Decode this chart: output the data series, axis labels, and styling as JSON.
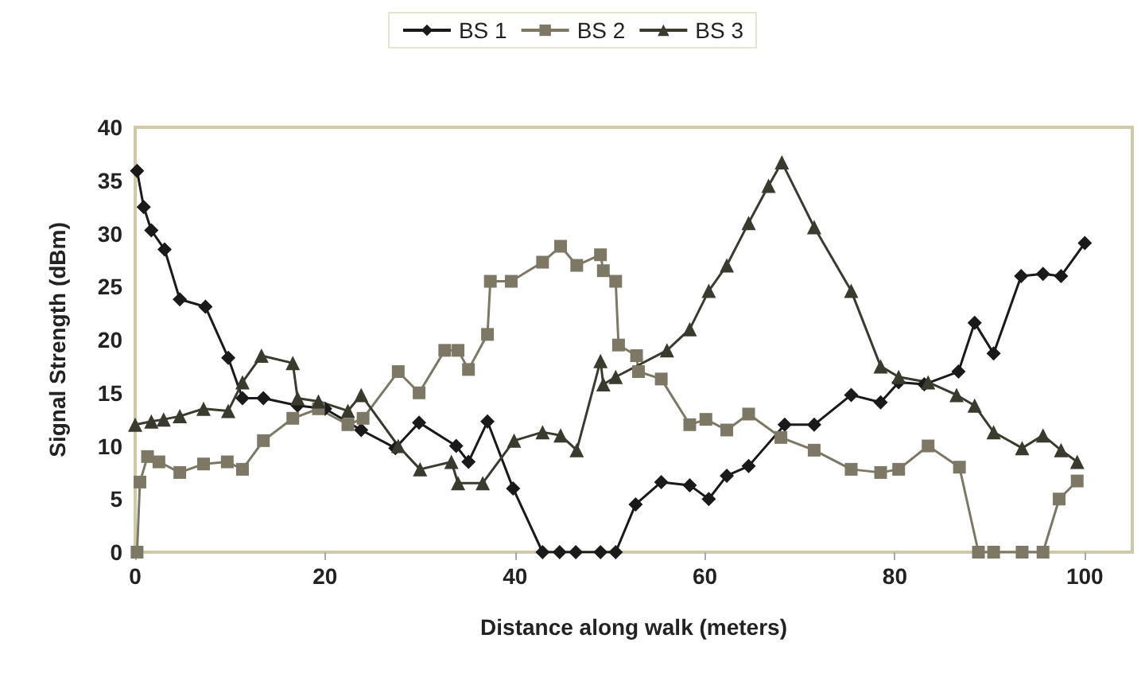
{
  "chart_data": {
    "type": "line",
    "xlabel": "Distance along walk (meters)",
    "ylabel": "Signal Strength (dBm)",
    "xlim": [
      0,
      105
    ],
    "xticks": [
      0,
      20,
      40,
      60,
      80,
      100
    ],
    "ylim": [
      0,
      40
    ],
    "yticks": [
      0,
      5,
      10,
      15,
      20,
      25,
      30,
      35,
      40
    ],
    "grid": false,
    "legend": "top",
    "line_style": "solid",
    "series": [
      {
        "name": "BS 1",
        "color": "#1a1a1a",
        "marker": "diamond",
        "x": [
          0.2,
          0.9,
          1.7,
          3.1,
          4.7,
          7.4,
          9.8,
          11.3,
          13.5,
          17.1,
          20,
          23.8,
          27.4,
          29.9,
          33.8,
          35.1,
          37.1,
          39.8,
          42.9,
          44.7,
          46.4,
          49,
          50.6,
          52.7,
          55.4,
          58.4,
          60.4,
          62.3,
          64.6,
          68.4,
          71.5,
          75.4,
          78.5,
          80.4,
          83.1,
          86.7,
          88.4,
          90.4,
          93.3,
          95.6,
          97.5,
          100
        ],
        "values": [
          35.9,
          32.5,
          30.3,
          28.5,
          23.8,
          23.1,
          18.3,
          14.5,
          14.5,
          13.8,
          13.5,
          11.5,
          9.8,
          12.2,
          10,
          8.5,
          12.3,
          6,
          0,
          0,
          0,
          0,
          0,
          4.5,
          6.6,
          6.3,
          5,
          7.2,
          8.1,
          12,
          12,
          14.8,
          14.1,
          16,
          15.8,
          17,
          21.6,
          18.7,
          26,
          26.2,
          26,
          29.1
        ]
      },
      {
        "name": "BS 2",
        "color": "#7d7866",
        "marker": "square",
        "x": [
          0.2,
          0.5,
          1.3,
          2.5,
          4.7,
          7.2,
          9.7,
          11.3,
          13.5,
          16.6,
          19.3,
          22.4,
          24,
          27.7,
          29.9,
          32.6,
          34,
          35.1,
          37.1,
          37.4,
          39.6,
          42.9,
          44.8,
          46.5,
          49,
          49.3,
          50.6,
          50.9,
          52.8,
          53,
          55.4,
          58.4,
          60.1,
          62.3,
          64.6,
          68,
          71.5,
          75.4,
          78.5,
          80.4,
          83.5,
          86.8,
          88.8,
          90.4,
          93.4,
          95.6,
          97.3,
          99.2
        ],
        "values": [
          0,
          6.6,
          9,
          8.5,
          7.5,
          8.3,
          8.5,
          7.8,
          10.5,
          12.6,
          13.5,
          12,
          12.6,
          17,
          15,
          19,
          19,
          17.2,
          20.5,
          25.5,
          25.5,
          27.3,
          28.8,
          27,
          28,
          26.5,
          25.5,
          19.5,
          18.5,
          17,
          16.3,
          12,
          12.5,
          11.5,
          13,
          10.8,
          9.6,
          7.8,
          7.5,
          7.8,
          10,
          8,
          0,
          0,
          0,
          0,
          5,
          6.7
        ]
      },
      {
        "name": "BS 3",
        "color": "#3b3a2e",
        "marker": "triangle",
        "x": [
          0,
          1.7,
          3,
          4.7,
          7.2,
          9.8,
          11.3,
          13.3,
          16.6,
          17.1,
          19.3,
          22.4,
          23.8,
          27.7,
          30,
          33.3,
          34,
          36.6,
          39.9,
          42.9,
          44.8,
          46.5,
          49,
          49.3,
          50.6,
          56,
          58.4,
          60.4,
          62.3,
          64.6,
          66.7,
          68.1,
          71.5,
          75.4,
          78.5,
          80.4,
          83.5,
          86.5,
          88.4,
          90.4,
          93.4,
          95.6,
          97.5,
          99.2
        ],
        "values": [
          12,
          12.3,
          12.5,
          12.8,
          13.5,
          13.3,
          16,
          18.5,
          17.8,
          14.5,
          14.2,
          13.3,
          14.8,
          10,
          7.8,
          8.5,
          6.5,
          6.5,
          10.5,
          11.3,
          11,
          9.6,
          18,
          15.8,
          16.5,
          19,
          21,
          24.6,
          27,
          31,
          34.5,
          36.7,
          30.6,
          24.6,
          17.5,
          16.5,
          16,
          14.8,
          13.8,
          11.3,
          9.8,
          11,
          9.6,
          8.5
        ]
      }
    ]
  }
}
